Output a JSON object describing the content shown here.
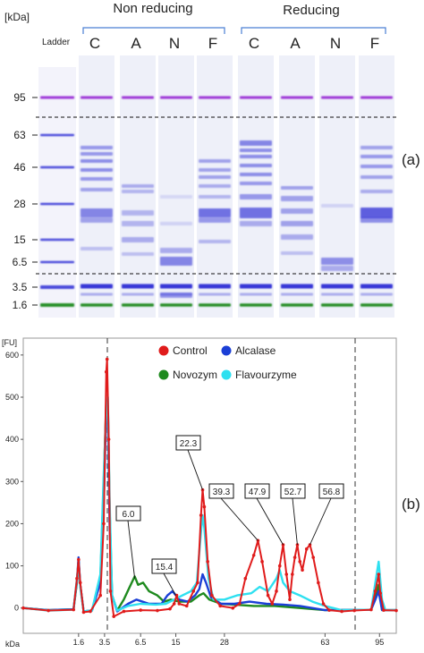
{
  "panel_a": {
    "unit_label": "[kDa]",
    "ladder_label": "Ladder",
    "group_nonreducing": "Non reducing",
    "group_reducing": "Reducing",
    "lane_labels": [
      "C",
      "A",
      "N",
      "F",
      "C",
      "A",
      "N",
      "F"
    ],
    "markers": [
      "95",
      "63",
      "46",
      "28",
      "15",
      "6.5",
      "3.5",
      "1.6"
    ],
    "panel_tag": "(a)",
    "colors": {
      "upper_marker": "#9a2fd6",
      "lower_marker": "#1e8a1e",
      "band": "#2f2fd6"
    }
  },
  "chart_data": {
    "type": "line",
    "unit_label": "[FU]",
    "xlabel": "kDa",
    "x_ticks": [
      "1.6",
      "3.5",
      "6.5",
      "15",
      "28",
      "63",
      "95"
    ],
    "ylim": [
      -60,
      640
    ],
    "y_ticks": [
      0,
      100,
      200,
      300,
      400,
      500,
      600
    ],
    "legend_position": "top-center",
    "series": [
      {
        "name": "Control",
        "color": "#e01b1b",
        "points": [
          [
            0,
            0
          ],
          [
            30,
            -6
          ],
          [
            60,
            -4
          ],
          [
            64,
            70
          ],
          [
            66,
            115
          ],
          [
            68,
            60
          ],
          [
            72,
            -10
          ],
          [
            80,
            -8
          ],
          [
            92,
            30
          ],
          [
            96,
            200
          ],
          [
            99,
            560
          ],
          [
            100,
            590
          ],
          [
            102,
            400
          ],
          [
            104,
            40
          ],
          [
            108,
            -20
          ],
          [
            120,
            -8
          ],
          [
            140,
            -5
          ],
          [
            160,
            -6
          ],
          [
            175,
            -2
          ],
          [
            180,
            10
          ],
          [
            183,
            30
          ],
          [
            186,
            10
          ],
          [
            195,
            5
          ],
          [
            203,
            40
          ],
          [
            208,
            60
          ],
          [
            212,
            220
          ],
          [
            214,
            280
          ],
          [
            216,
            240
          ],
          [
            220,
            110
          ],
          [
            225,
            30
          ],
          [
            235,
            5
          ],
          [
            250,
            0
          ],
          [
            258,
            10
          ],
          [
            265,
            70
          ],
          [
            275,
            125
          ],
          [
            280,
            160
          ],
          [
            285,
            110
          ],
          [
            292,
            30
          ],
          [
            297,
            10
          ],
          [
            302,
            40
          ],
          [
            306,
            100
          ],
          [
            310,
            150
          ],
          [
            314,
            80
          ],
          [
            318,
            20
          ],
          [
            321,
            80
          ],
          [
            324,
            120
          ],
          [
            327,
            150
          ],
          [
            330,
            110
          ],
          [
            333,
            90
          ],
          [
            338,
            140
          ],
          [
            342,
            150
          ],
          [
            346,
            120
          ],
          [
            352,
            60
          ],
          [
            358,
            10
          ],
          [
            365,
            -5
          ],
          [
            380,
            -8
          ],
          [
            395,
            -6
          ],
          [
            415,
            -4
          ],
          [
            420,
            40
          ],
          [
            424,
            80
          ],
          [
            426,
            35
          ],
          [
            430,
            -5
          ],
          [
            445,
            -6
          ]
        ]
      },
      {
        "name": "Alcalase",
        "color": "#1b3fd6",
        "points": [
          [
            0,
            0
          ],
          [
            30,
            -5
          ],
          [
            60,
            -3
          ],
          [
            64,
            65
          ],
          [
            66,
            120
          ],
          [
            68,
            55
          ],
          [
            72,
            -8
          ],
          [
            82,
            -6
          ],
          [
            92,
            60
          ],
          [
            96,
            250
          ],
          [
            99,
            480
          ],
          [
            101,
            460
          ],
          [
            103,
            200
          ],
          [
            106,
            30
          ],
          [
            112,
            -8
          ],
          [
            125,
            10
          ],
          [
            135,
            20
          ],
          [
            150,
            10
          ],
          [
            165,
            10
          ],
          [
            172,
            30
          ],
          [
            178,
            40
          ],
          [
            186,
            20
          ],
          [
            196,
            15
          ],
          [
            205,
            30
          ],
          [
            210,
            45
          ],
          [
            214,
            80
          ],
          [
            218,
            60
          ],
          [
            224,
            25
          ],
          [
            236,
            10
          ],
          [
            252,
            10
          ],
          [
            270,
            15
          ],
          [
            290,
            10
          ],
          [
            310,
            8
          ],
          [
            330,
            5
          ],
          [
            360,
            -5
          ],
          [
            415,
            -4
          ],
          [
            420,
            20
          ],
          [
            424,
            40
          ],
          [
            428,
            -5
          ],
          [
            445,
            -5
          ]
        ]
      },
      {
        "name": "Novozym",
        "color": "#1e8a1e",
        "points": [
          [
            0,
            0
          ],
          [
            30,
            -5
          ],
          [
            60,
            -3
          ],
          [
            64,
            60
          ],
          [
            66,
            115
          ],
          [
            68,
            55
          ],
          [
            72,
            -8
          ],
          [
            82,
            -6
          ],
          [
            92,
            70
          ],
          [
            96,
            300
          ],
          [
            99,
            490
          ],
          [
            101,
            480
          ],
          [
            103,
            240
          ],
          [
            106,
            30
          ],
          [
            112,
            -6
          ],
          [
            120,
            20
          ],
          [
            127,
            50
          ],
          [
            133,
            75
          ],
          [
            137,
            55
          ],
          [
            143,
            60
          ],
          [
            150,
            40
          ],
          [
            160,
            30
          ],
          [
            168,
            15
          ],
          [
            176,
            20
          ],
          [
            186,
            15
          ],
          [
            200,
            15
          ],
          [
            210,
            30
          ],
          [
            215,
            35
          ],
          [
            222,
            20
          ],
          [
            236,
            10
          ],
          [
            252,
            8
          ],
          [
            275,
            5
          ],
          [
            300,
            5
          ],
          [
            330,
            0
          ],
          [
            360,
            -5
          ],
          [
            415,
            -4
          ],
          [
            420,
            25
          ],
          [
            424,
            55
          ],
          [
            428,
            -5
          ],
          [
            445,
            -5
          ]
        ]
      },
      {
        "name": "Flavourzyme",
        "color": "#2ee0f0",
        "points": [
          [
            0,
            0
          ],
          [
            30,
            -6
          ],
          [
            60,
            -4
          ],
          [
            64,
            70
          ],
          [
            66,
            110
          ],
          [
            68,
            50
          ],
          [
            72,
            -8
          ],
          [
            82,
            -6
          ],
          [
            92,
            80
          ],
          [
            96,
            320
          ],
          [
            99,
            470
          ],
          [
            101,
            500
          ],
          [
            103,
            260
          ],
          [
            106,
            30
          ],
          [
            112,
            -6
          ],
          [
            125,
            5
          ],
          [
            140,
            10
          ],
          [
            158,
            8
          ],
          [
            170,
            10
          ],
          [
            180,
            20
          ],
          [
            190,
            30
          ],
          [
            200,
            40
          ],
          [
            207,
            60
          ],
          [
            212,
            180
          ],
          [
            214,
            220
          ],
          [
            216,
            190
          ],
          [
            221,
            70
          ],
          [
            227,
            20
          ],
          [
            240,
            20
          ],
          [
            255,
            30
          ],
          [
            272,
            35
          ],
          [
            282,
            50
          ],
          [
            292,
            40
          ],
          [
            302,
            70
          ],
          [
            306,
            90
          ],
          [
            310,
            60
          ],
          [
            318,
            40
          ],
          [
            330,
            30
          ],
          [
            345,
            15
          ],
          [
            360,
            5
          ],
          [
            380,
            -5
          ],
          [
            415,
            -4
          ],
          [
            420,
            60
          ],
          [
            424,
            110
          ],
          [
            428,
            20
          ],
          [
            432,
            -5
          ],
          [
            445,
            -5
          ]
        ]
      }
    ],
    "annotations": [
      "6.0",
      "15.4",
      "22.3",
      "39.3",
      "47.9",
      "52.7",
      "56.8"
    ],
    "panel_tag": "(b)"
  }
}
